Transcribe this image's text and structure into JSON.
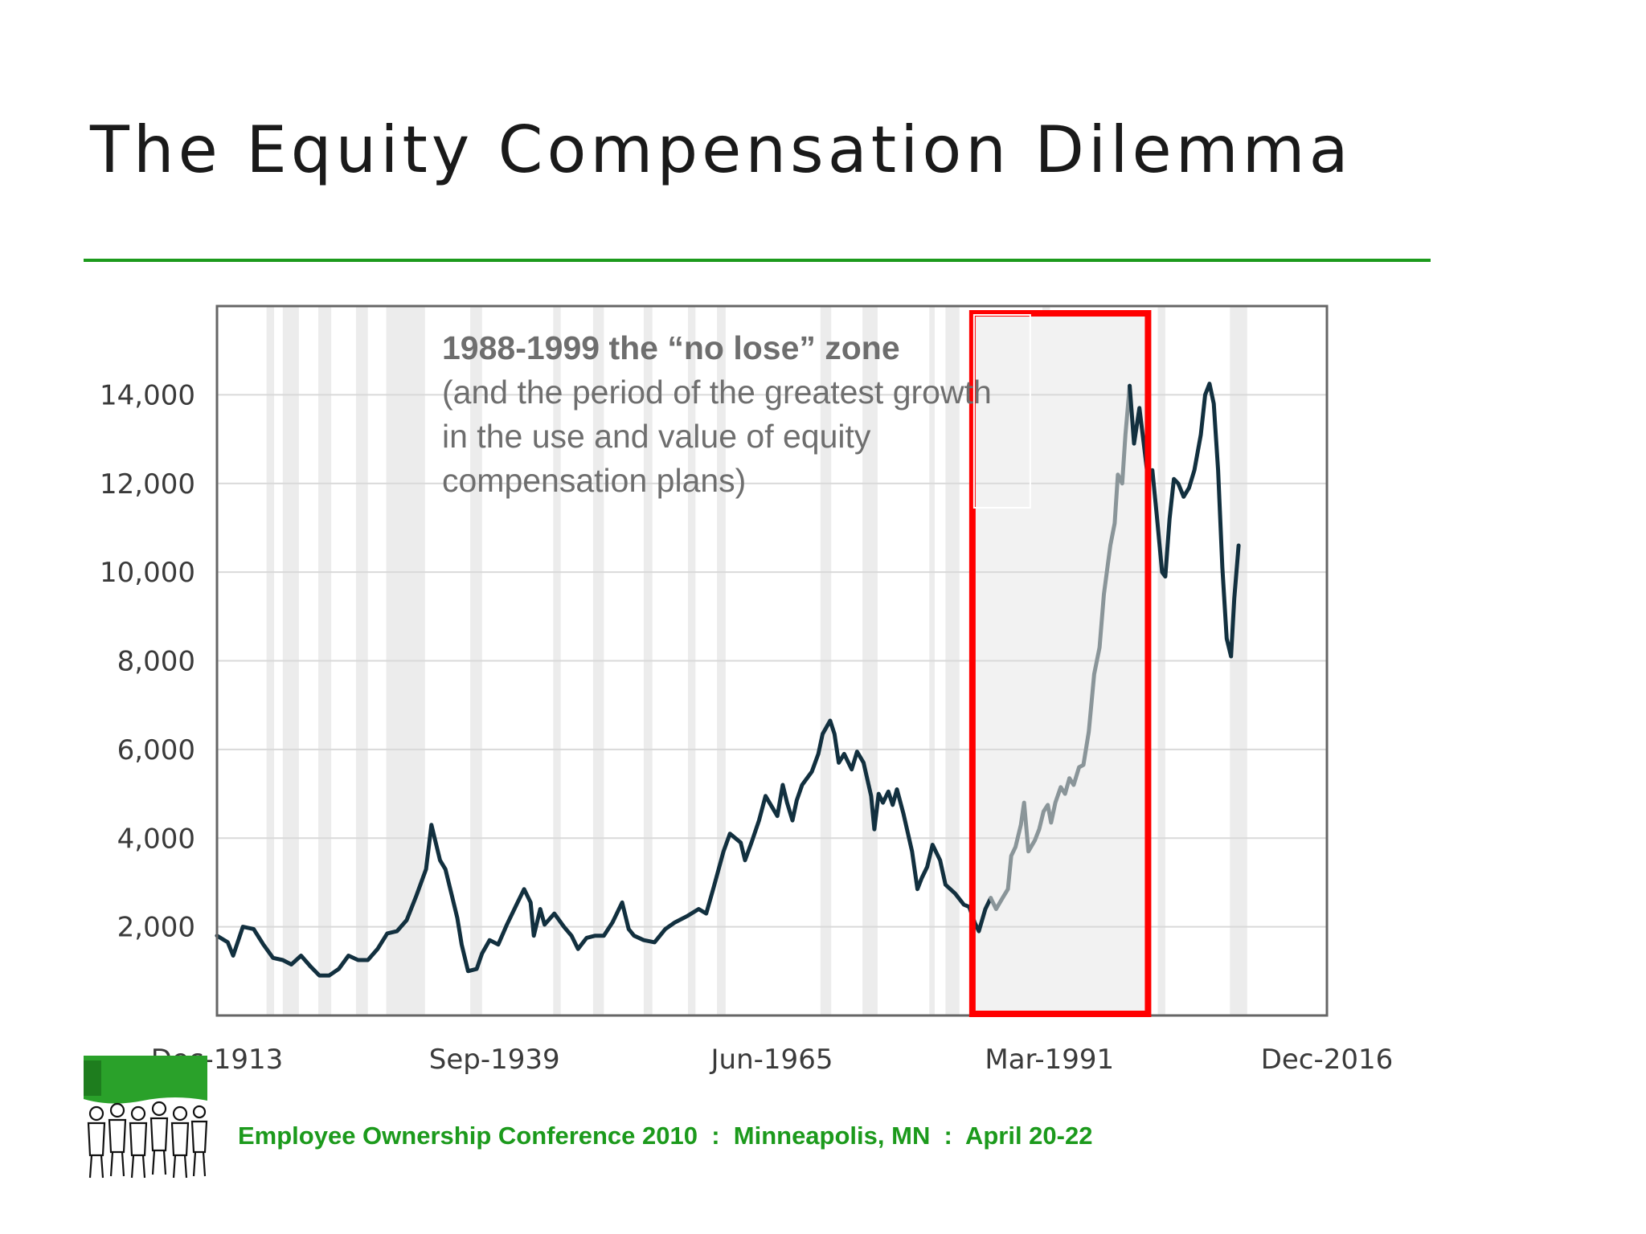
{
  "slide": {
    "title": "The Equity Compensation Dilemma",
    "footer": "Employee Ownership Conference 2010  :  Minneapolis, MN  :  April 20-22",
    "colors": {
      "accent_green": "#1c9a1c",
      "highlight_red": "#ff0000",
      "series_dark": "#12303f",
      "series_gray": "#8a9599"
    }
  },
  "annotation": {
    "heading": "1988-1999 the “no lose” zone",
    "body": "(and the period of the greatest growth in the use and value of equity compensation plans)"
  },
  "logo": {
    "icon": "employee-ownership-people-logo"
  },
  "chart_data": {
    "type": "line",
    "title": "",
    "xlabel": "",
    "ylabel": "",
    "x_ticks": [
      "Dec-1913",
      "Sep-1939",
      "Jun-1965",
      "Mar-1991",
      "Dec-2016"
    ],
    "y_ticks": [
      "2,000",
      "4,000",
      "6,000",
      "8,000",
      "10,000",
      "12,000",
      "14,000"
    ],
    "y_tick_values": [
      2000,
      4000,
      6000,
      8000,
      10000,
      12000,
      14000
    ],
    "xlim": [
      1913.9,
      2016.9
    ],
    "ylim": [
      0,
      16000
    ],
    "grid": true,
    "highlight": {
      "label": "1988-1999",
      "x_start": 1984.0,
      "x_end": 2000.3
    },
    "series": [
      {
        "values": [
          [
            1913.9,
            1800
          ],
          [
            1914.9,
            1650
          ],
          [
            1915.4,
            1350
          ],
          [
            1916.3,
            2000
          ],
          [
            1917.3,
            1950
          ],
          [
            1918.2,
            1600
          ],
          [
            1919.1,
            1300
          ],
          [
            1920.0,
            1250
          ],
          [
            1920.8,
            1150
          ],
          [
            1921.7,
            1350
          ],
          [
            1922.6,
            1100
          ],
          [
            1923.4,
            900
          ],
          [
            1924.3,
            900
          ],
          [
            1925.2,
            1050
          ],
          [
            1926.1,
            1350
          ],
          [
            1927.0,
            1250
          ],
          [
            1927.9,
            1250
          ],
          [
            1928.8,
            1500
          ],
          [
            1929.7,
            1850
          ],
          [
            1930.6,
            1900
          ],
          [
            1931.5,
            2150
          ],
          [
            1932.4,
            2700
          ],
          [
            1933.3,
            3300
          ],
          [
            1933.8,
            4300
          ],
          [
            1934.6,
            3500
          ],
          [
            1935.1,
            3300
          ],
          [
            1935.7,
            2700
          ],
          [
            1936.2,
            2200
          ],
          [
            1936.6,
            1600
          ],
          [
            1937.2,
            1000
          ],
          [
            1938.0,
            1050
          ],
          [
            1938.5,
            1400
          ],
          [
            1939.2,
            1700
          ],
          [
            1940.0,
            1600
          ],
          [
            1940.8,
            2050
          ],
          [
            1941.7,
            2500
          ],
          [
            1942.4,
            2850
          ],
          [
            1943.0,
            2550
          ],
          [
            1943.3,
            1800
          ],
          [
            1943.9,
            2400
          ],
          [
            1944.3,
            2050
          ],
          [
            1945.2,
            2300
          ],
          [
            1946.1,
            2000
          ],
          [
            1946.8,
            1800
          ],
          [
            1947.4,
            1500
          ],
          [
            1948.2,
            1750
          ],
          [
            1949.0,
            1800
          ],
          [
            1949.8,
            1800
          ],
          [
            1950.6,
            2100
          ],
          [
            1951.5,
            2550
          ],
          [
            1952.1,
            1950
          ],
          [
            1952.6,
            1800
          ],
          [
            1953.5,
            1700
          ],
          [
            1954.5,
            1650
          ],
          [
            1955.5,
            1950
          ],
          [
            1956.4,
            2100
          ],
          [
            1957.6,
            2250
          ],
          [
            1958.6,
            2400
          ],
          [
            1959.3,
            2300
          ],
          [
            1960.0,
            2900
          ],
          [
            1960.9,
            3700
          ],
          [
            1961.5,
            4100
          ],
          [
            1962.5,
            3900
          ],
          [
            1962.9,
            3500
          ],
          [
            1963.5,
            3900
          ],
          [
            1964.2,
            4400
          ],
          [
            1964.8,
            4950
          ],
          [
            1965.9,
            4500
          ],
          [
            1966.4,
            5200
          ],
          [
            1966.8,
            4800
          ],
          [
            1967.3,
            4400
          ],
          [
            1967.7,
            4850
          ],
          [
            1968.2,
            5200
          ],
          [
            1969.1,
            5500
          ],
          [
            1969.7,
            5900
          ],
          [
            1970.1,
            6350
          ],
          [
            1970.8,
            6650
          ],
          [
            1971.2,
            6350
          ],
          [
            1971.6,
            5700
          ],
          [
            1972.1,
            5900
          ],
          [
            1972.8,
            5550
          ],
          [
            1973.3,
            5950
          ],
          [
            1973.9,
            5700
          ],
          [
            1974.6,
            4950
          ],
          [
            1974.9,
            4200
          ],
          [
            1975.3,
            5000
          ],
          [
            1975.7,
            4800
          ],
          [
            1976.2,
            5050
          ],
          [
            1976.6,
            4750
          ],
          [
            1977.0,
            5100
          ],
          [
            1977.6,
            4550
          ],
          [
            1978.4,
            3700
          ],
          [
            1978.9,
            2850
          ],
          [
            1979.3,
            3100
          ],
          [
            1979.8,
            3350
          ],
          [
            1980.3,
            3850
          ],
          [
            1981.0,
            3500
          ],
          [
            1981.5,
            2950
          ],
          [
            1982.4,
            2750
          ],
          [
            1983.2,
            2500
          ],
          [
            1983.7,
            2450
          ],
          [
            1984.2,
            2100
          ],
          [
            1984.6,
            1900
          ],
          [
            1985.2,
            2400
          ],
          [
            1985.7,
            2650
          ]
        ]
      },
      {
        "values": [
          [
            1985.7,
            2650
          ],
          [
            1986.2,
            2400
          ],
          [
            1986.8,
            2650
          ],
          [
            1987.3,
            2850
          ],
          [
            1987.6,
            3600
          ],
          [
            1988.0,
            3800
          ],
          [
            1988.5,
            4300
          ],
          [
            1988.8,
            4800
          ],
          [
            1989.2,
            3700
          ],
          [
            1989.8,
            3950
          ],
          [
            1990.2,
            4200
          ],
          [
            1990.6,
            4600
          ],
          [
            1991.0,
            4750
          ],
          [
            1991.3,
            4350
          ],
          [
            1991.7,
            4800
          ],
          [
            1992.2,
            5150
          ],
          [
            1992.6,
            5000
          ],
          [
            1993.0,
            5350
          ],
          [
            1993.4,
            5200
          ],
          [
            1993.9,
            5600
          ],
          [
            1994.3,
            5650
          ],
          [
            1994.8,
            6400
          ],
          [
            1995.3,
            7700
          ],
          [
            1995.8,
            8300
          ],
          [
            1996.2,
            9500
          ],
          [
            1996.8,
            10600
          ],
          [
            1997.2,
            11100
          ],
          [
            1997.5,
            12200
          ],
          [
            1997.9,
            12000
          ],
          [
            1998.2,
            13100
          ],
          [
            1998.6,
            14200
          ]
        ]
      },
      {
        "values": [
          [
            1998.6,
            14200
          ],
          [
            1999.0,
            12900
          ],
          [
            1999.5,
            13700
          ],
          [
            1999.9,
            12900
          ],
          [
            2000.3,
            12100
          ],
          [
            2000.7,
            12300
          ],
          [
            2001.1,
            11300
          ],
          [
            2001.6,
            10000
          ],
          [
            2001.9,
            9900
          ],
          [
            2002.3,
            11200
          ],
          [
            2002.7,
            12100
          ],
          [
            2003.1,
            12000
          ],
          [
            2003.6,
            11700
          ],
          [
            2004.1,
            11900
          ],
          [
            2004.6,
            12300
          ],
          [
            2005.2,
            13100
          ],
          [
            2005.6,
            14000
          ],
          [
            2006.0,
            14250
          ],
          [
            2006.4,
            13800
          ],
          [
            2006.8,
            12300
          ],
          [
            2007.2,
            10100
          ],
          [
            2007.6,
            8500
          ],
          [
            2008.0,
            8100
          ],
          [
            2008.3,
            9400
          ],
          [
            2008.7,
            10600
          ]
        ]
      }
    ],
    "recession_bands": [
      [
        1918.5,
        1919.2
      ],
      [
        1920.0,
        1921.5
      ],
      [
        1923.3,
        1924.5
      ],
      [
        1926.8,
        1927.9
      ],
      [
        1929.6,
        1933.2
      ],
      [
        1937.4,
        1938.5
      ],
      [
        1945.1,
        1945.8
      ],
      [
        1948.8,
        1949.8
      ],
      [
        1953.5,
        1954.3
      ],
      [
        1957.6,
        1958.3
      ],
      [
        1960.3,
        1961.1
      ],
      [
        1969.9,
        1970.9
      ],
      [
        1973.8,
        1975.2
      ],
      [
        1980.0,
        1980.5
      ],
      [
        1981.5,
        1982.8
      ],
      [
        1990.5,
        1991.2
      ],
      [
        2001.2,
        2001.9
      ],
      [
        2007.9,
        2009.5
      ]
    ]
  }
}
